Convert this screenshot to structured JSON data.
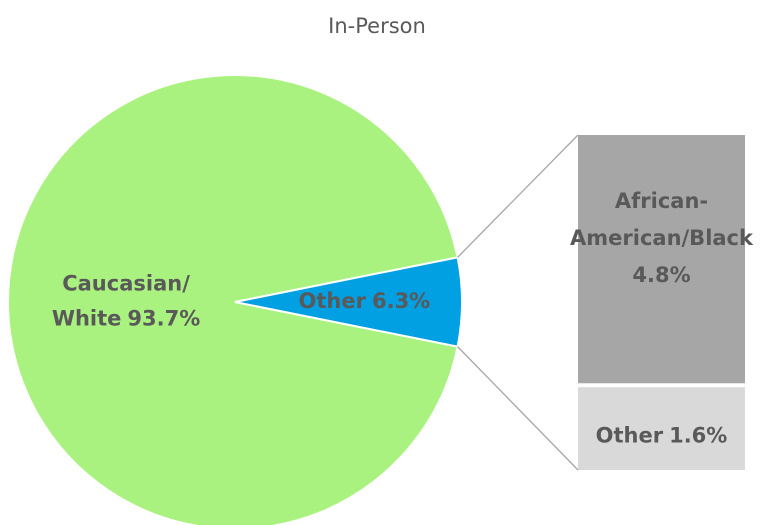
{
  "chart_data": {
    "type": "pie",
    "title": "In-Person",
    "pie": {
      "categories": [
        "Caucasian/White",
        "Other"
      ],
      "values": [
        93.7,
        6.3
      ],
      "value_labels": [
        "93.7%",
        "6.3%"
      ],
      "colors": [
        "#aaf27f",
        "#00a0e3"
      ]
    },
    "bar": {
      "categories": [
        "African-American/Black",
        "Other"
      ],
      "values": [
        4.8,
        1.6
      ],
      "value_labels": [
        "4.8%",
        "1.6%"
      ],
      "colors": [
        "#a6a6a6",
        "#d9d9d9"
      ]
    }
  }
}
